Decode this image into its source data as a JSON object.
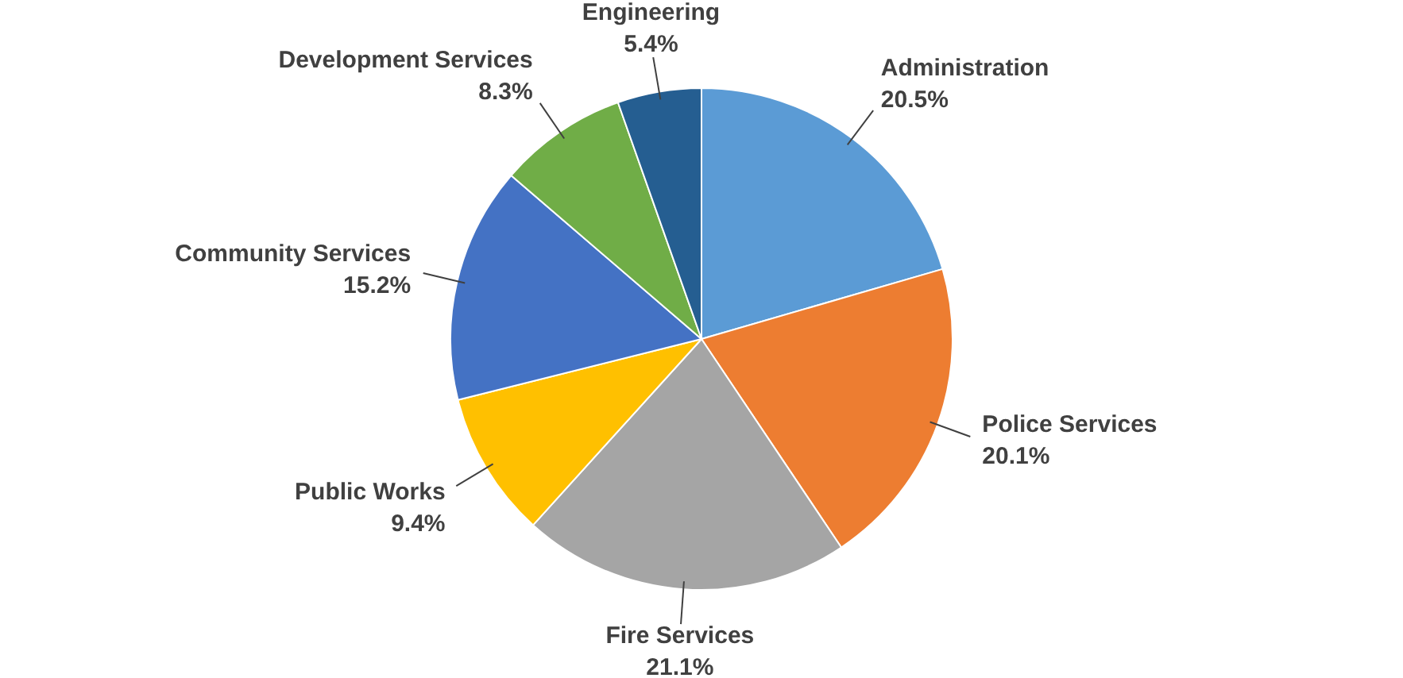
{
  "chart_data": {
    "type": "pie",
    "categories": [
      "Administration",
      "Police Services",
      "Fire Services",
      "Public Works",
      "Community Services",
      "Development Services",
      "Engineering"
    ],
    "values": [
      20.5,
      20.1,
      21.1,
      9.4,
      15.2,
      8.3,
      5.4
    ],
    "value_labels": [
      "20.5%",
      "20.1%",
      "21.1%",
      "9.4%",
      "15.2%",
      "8.3%",
      "5.4%"
    ],
    "colors": [
      "#5b9bd5",
      "#ed7d31",
      "#a5a5a5",
      "#ffc000",
      "#4472c4",
      "#70ad47",
      "#255e91"
    ],
    "legend": false
  }
}
